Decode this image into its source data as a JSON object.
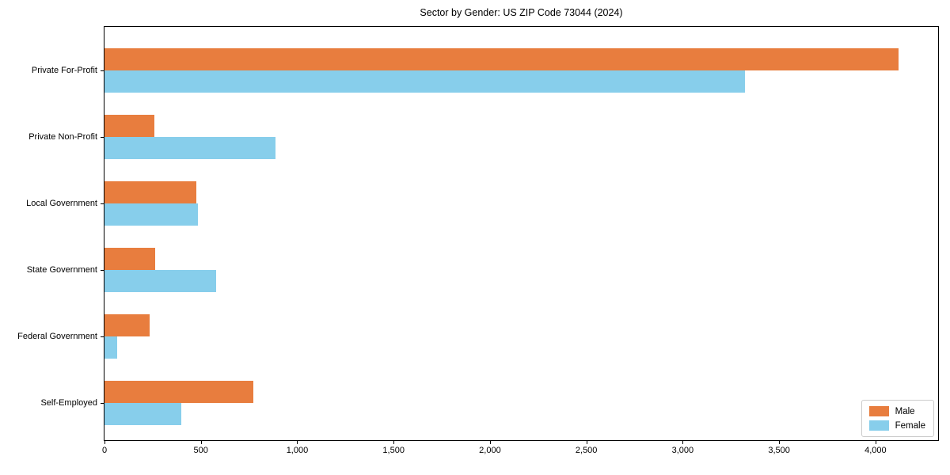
{
  "chart_data": {
    "type": "bar",
    "orientation": "horizontal",
    "title": "Sector by Gender: US ZIP Code 73044 (2024)",
    "xlabel": "",
    "ylabel": "",
    "categories": [
      "Private For-Profit",
      "Private Non-Profit",
      "Local Government",
      "State Government",
      "Federal Government",
      "Self-Employed"
    ],
    "series": [
      {
        "name": "Male",
        "color": "#E87D3E",
        "values": [
          4120,
          259,
          476,
          263,
          234,
          772
        ]
      },
      {
        "name": "Female",
        "color": "#87CEEB",
        "values": [
          3322,
          887,
          485,
          579,
          66,
          398
        ]
      }
    ],
    "xlim": [
      0,
      4325
    ],
    "xticks": [
      0,
      500,
      1000,
      1500,
      2000,
      2500,
      3000,
      3500,
      4000
    ],
    "xtick_labels": [
      "0",
      "500",
      "1,000",
      "1,500",
      "2,000",
      "2,500",
      "3,000",
      "3,500",
      "4,000"
    ],
    "legend_position": "lower right",
    "grid": false,
    "background": "#ffffff",
    "spine_color": "#000000"
  }
}
